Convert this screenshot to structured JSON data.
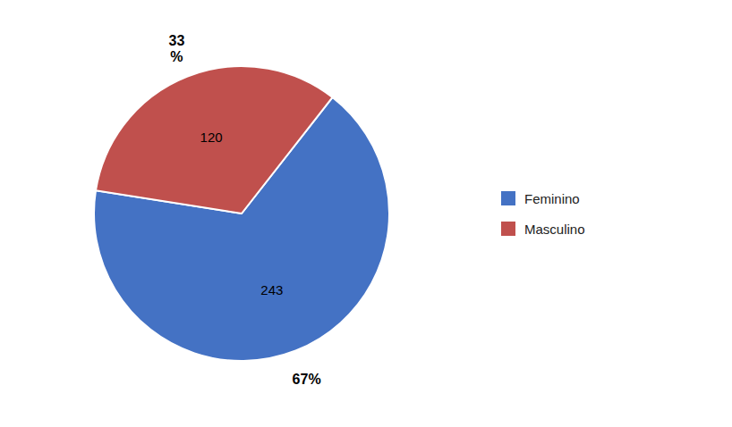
{
  "chart_data": {
    "type": "pie",
    "categories": [
      "Feminino",
      "Masculino"
    ],
    "values": [
      243,
      120
    ],
    "colors": [
      "#4472C4",
      "#C0504D"
    ],
    "data_labels": true,
    "shares": [
      67,
      33
    ],
    "share_labels": [
      "67%",
      "33\n%"
    ],
    "legend": "right"
  }
}
